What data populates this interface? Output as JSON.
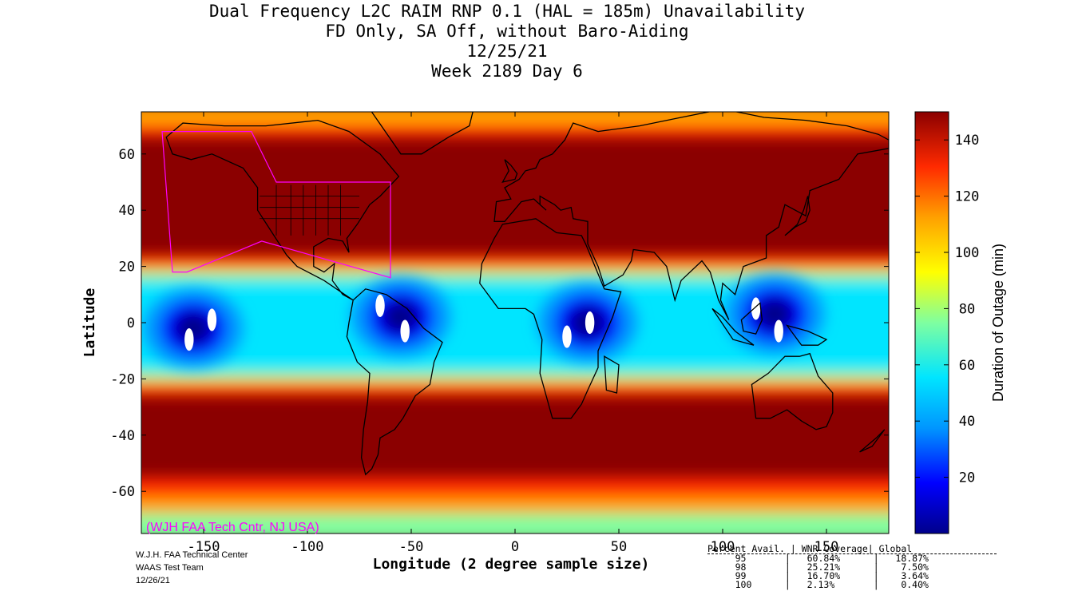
{
  "header": {
    "title_line1": "Dual Frequency L2C RAIM RNP 0.1 (HAL = 185m) Unavailability",
    "title_line2": "FD Only, SA Off, without Baro-Aiding",
    "title_line3": "12/25/21",
    "title_line4": "Week 2189 Day 6"
  },
  "watermark": "(WJH FAA Tech Cntr, NJ USA)",
  "credit": {
    "line1": "W.J.H. FAA Technical Center",
    "line2": "WAAS Test Team",
    "line3": "12/26/21"
  },
  "stats_table": {
    "header": "Percent Avail. | WNR Coverage| Global",
    "rows": [
      {
        "percent": "95",
        "wnr": "60.84%",
        "global": "18.87%"
      },
      {
        "percent": "98",
        "wnr": "25.21%",
        "global": "7.50%"
      },
      {
        "percent": "99",
        "wnr": "16.70%",
        "global": "3.64%"
      },
      {
        "percent": "100",
        "wnr": "2.13%",
        "global": "0.40%"
      }
    ]
  },
  "chart_data": {
    "type": "heatmap",
    "title": "Dual Frequency L2C RAIM RNP 0.1 (HAL = 185m) Unavailability",
    "xlabel": "Longitude (2 degree sample size)",
    "ylabel": "Latitude",
    "colorbar_label": "Duration of Outage (min)",
    "xlim": [
      -180,
      180
    ],
    "ylim": [
      -75,
      75
    ],
    "x_ticks": [
      -150,
      -100,
      -50,
      0,
      50,
      100,
      150
    ],
    "y_ticks": [
      60,
      40,
      20,
      0,
      -20,
      -40,
      -60
    ],
    "colorbar_range": [
      0,
      150
    ],
    "colorbar_ticks": [
      20,
      40,
      60,
      80,
      100,
      120,
      140
    ],
    "equatorial_low_outage_band_lat": [
      -20,
      18
    ],
    "low_outage_centers": [
      {
        "lon": -155,
        "lat": -2
      },
      {
        "lon": -55,
        "lat": 2
      },
      {
        "lon": 35,
        "lat": 0
      },
      {
        "lon": 125,
        "lat": 3
      }
    ],
    "zero_outage_spots": [
      {
        "lon": -146,
        "lat": 1
      },
      {
        "lon": -157,
        "lat": -6
      },
      {
        "lon": -65,
        "lat": 6
      },
      {
        "lon": -53,
        "lat": -3
      },
      {
        "lon": 25,
        "lat": -5
      },
      {
        "lon": 36,
        "lat": 0
      },
      {
        "lon": 116,
        "lat": 5
      },
      {
        "lon": 127,
        "lat": -3
      }
    ],
    "wnr_region_polygon": [
      [
        -170,
        68
      ],
      [
        -127,
        68
      ],
      [
        -115,
        50
      ],
      [
        -60,
        50
      ],
      [
        -60,
        16
      ],
      [
        -122,
        29
      ],
      [
        -158,
        18
      ],
      [
        -165,
        18
      ]
    ],
    "colormap": [
      "#00008b",
      "#0000ff",
      "#0096ff",
      "#00e5ff",
      "#7fffa0",
      "#ffff00",
      "#ffa000",
      "#ff2a00",
      "#8b0000"
    ]
  }
}
